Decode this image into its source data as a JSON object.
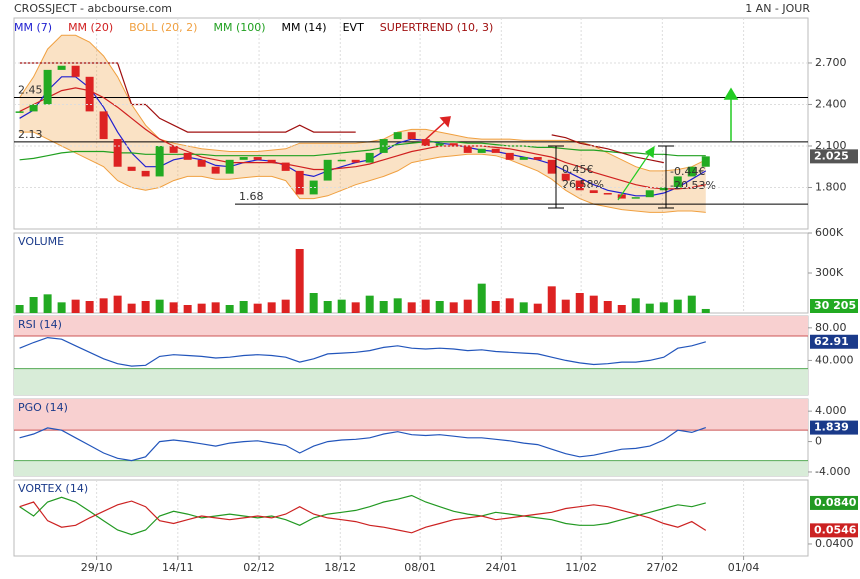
{
  "chart_data": [
    {
      "type": "candlestick",
      "title": "CROSSJECT - abcbourse.com",
      "subtitle": "1 AN - JOUR",
      "xlim": [
        -0.4,
        56.3
      ],
      "xticks": [
        {
          "value": 5.5,
          "label": "29/10"
        },
        {
          "value": 11.3,
          "label": "14/11"
        },
        {
          "value": 17.1,
          "label": "02/12"
        },
        {
          "value": 22.9,
          "label": "18/12"
        },
        {
          "value": 28.6,
          "label": "08/01"
        },
        {
          "value": 34.4,
          "label": "24/01"
        },
        {
          "value": 40.1,
          "label": "11/02"
        },
        {
          "value": 45.9,
          "label": "27/02"
        },
        {
          "value": 51.7,
          "label": "01/04"
        }
      ],
      "ylim": [
        1.5,
        3.025
      ],
      "yticks": [
        {
          "value": 2.7,
          "label": "2.700"
        },
        {
          "value": 2.4,
          "label": "2.400"
        },
        {
          "value": 2.1,
          "label": "2.100"
        },
        {
          "value": 1.8,
          "label": "1.800"
        }
      ],
      "grid": true,
      "up_color": "#22aa22",
      "down_color": "#dd2222",
      "values": [
        2.35,
        2.4,
        2.65,
        2.68,
        2.6,
        2.35,
        2.15,
        1.95,
        1.92,
        1.88,
        2.1,
        2.05,
        2.0,
        1.95,
        1.9,
        2.0,
        2.02,
        2.0,
        1.98,
        1.92,
        1.75,
        1.85,
        2.0,
        2.0,
        1.98,
        2.05,
        2.15,
        2.2,
        2.15,
        2.1,
        2.12,
        2.1,
        2.05,
        2.08,
        2.05,
        2.0,
        2.02,
        2.0,
        1.9,
        1.85,
        1.78,
        1.76,
        1.75,
        1.72,
        1.73,
        1.78,
        1.8,
        1.88,
        1.95,
        2.025
      ],
      "series": [
        {
          "name": "MM (7)",
          "color": "#2020d0",
          "values": [
            2.3,
            2.36,
            2.5,
            2.6,
            2.6,
            2.52,
            2.38,
            2.2,
            2.05,
            1.95,
            1.95,
            2.0,
            2.02,
            2.0,
            1.96,
            1.95,
            1.98,
            2.0,
            1.99,
            1.96,
            1.9,
            1.88,
            1.92,
            1.95,
            1.98,
            2.0,
            2.06,
            2.12,
            2.15,
            2.14,
            2.12,
            2.11,
            2.09,
            2.07,
            2.06,
            2.04,
            2.02,
            2.0,
            1.97,
            1.92,
            1.87,
            1.82,
            1.78,
            1.76,
            1.74,
            1.74,
            1.76,
            1.8,
            1.86,
            1.92
          ]
        },
        {
          "name": "MM (20)",
          "color": "#d02020",
          "values": [
            2.35,
            2.4,
            2.45,
            2.5,
            2.52,
            2.5,
            2.45,
            2.38,
            2.3,
            2.22,
            2.15,
            2.1,
            2.06,
            2.02,
            2.0,
            1.98,
            1.98,
            1.98,
            1.98,
            1.97,
            1.95,
            1.93,
            1.93,
            1.94,
            1.95,
            1.97,
            2.0,
            2.03,
            2.06,
            2.08,
            2.1,
            2.1,
            2.1,
            2.1,
            2.09,
            2.08,
            2.06,
            2.04,
            2.02,
            1.98,
            1.95,
            1.91,
            1.88,
            1.85,
            1.82,
            1.8,
            1.79,
            1.79,
            1.8,
            1.82
          ]
        },
        {
          "name": "BOLL (20, 2)",
          "color": "#f0a040",
          "type": "band",
          "upper": [
            2.45,
            2.6,
            2.8,
            2.9,
            2.9,
            2.85,
            2.75,
            2.6,
            2.4,
            2.25,
            2.15,
            2.12,
            2.1,
            2.08,
            2.07,
            2.06,
            2.06,
            2.06,
            2.07,
            2.08,
            2.12,
            2.12,
            2.12,
            2.12,
            2.12,
            2.13,
            2.15,
            2.2,
            2.22,
            2.22,
            2.2,
            2.18,
            2.16,
            2.15,
            2.15,
            2.15,
            2.14,
            2.14,
            2.14,
            2.14,
            2.13,
            2.1,
            2.05,
            2.0,
            1.95,
            1.92,
            1.92,
            1.93,
            1.95,
            2.0
          ],
          "lower": [
            2.2,
            2.2,
            2.15,
            2.1,
            2.05,
            2.0,
            1.95,
            1.85,
            1.8,
            1.78,
            1.8,
            1.85,
            1.88,
            1.88,
            1.86,
            1.86,
            1.87,
            1.88,
            1.88,
            1.85,
            1.72,
            1.72,
            1.74,
            1.78,
            1.82,
            1.85,
            1.88,
            1.92,
            1.98,
            2.0,
            2.02,
            2.03,
            2.04,
            2.04,
            2.03,
            2.0,
            1.96,
            1.92,
            1.86,
            1.78,
            1.72,
            1.68,
            1.66,
            1.64,
            1.63,
            1.62,
            1.62,
            1.63,
            1.63,
            1.62
          ]
        },
        {
          "name": "MM (100)",
          "color": "#20a020",
          "values": [
            2.0,
            2.01,
            2.03,
            2.05,
            2.06,
            2.06,
            2.06,
            2.05,
            2.05,
            2.04,
            2.04,
            2.04,
            2.04,
            2.04,
            2.03,
            2.03,
            2.03,
            2.03,
            2.03,
            2.03,
            2.03,
            2.03,
            2.04,
            2.05,
            2.06,
            2.07,
            2.09,
            2.11,
            2.12,
            2.13,
            2.13,
            2.13,
            2.12,
            2.12,
            2.11,
            2.1,
            2.1,
            2.09,
            2.09,
            2.08,
            2.07,
            2.07,
            2.06,
            2.05,
            2.05,
            2.04,
            2.04,
            2.03,
            2.03,
            2.03
          ]
        },
        {
          "name": "MM (14)",
          "color": "#000000"
        },
        {
          "name": "EVT",
          "color": "#000000"
        },
        {
          "name": "SUPERTREND (10, 3)",
          "color": "#a01010",
          "values": [
            2.7,
            2.7,
            2.7,
            2.7,
            2.7,
            2.7,
            2.7,
            2.7,
            2.4,
            2.4,
            2.3,
            2.25,
            2.2,
            2.2,
            2.2,
            2.2,
            2.2,
            2.2,
            2.2,
            2.2,
            2.25,
            2.2,
            2.2,
            2.2,
            2.2,
            null,
            null,
            null,
            null,
            null,
            null,
            null,
            null,
            null,
            null,
            null,
            null,
            null,
            2.18,
            2.16,
            2.12,
            2.1,
            2.08,
            2.05,
            2.02,
            2.0,
            1.98,
            null,
            null,
            null
          ]
        }
      ],
      "levels": [
        2.45,
        2.13,
        1.68
      ],
      "annotations": [
        "0.45€",
        "26.58%",
        "-0.44€",
        "-20.53%"
      ]
    },
    {
      "type": "bar",
      "title": "VOLUME",
      "ylim": [
        0,
        600000
      ],
      "yticks": [
        {
          "value": 600000,
          "label": "600K"
        },
        {
          "value": 300000,
          "label": "300K"
        }
      ],
      "color": "#22aa22",
      "values": [
        60000,
        120000,
        140000,
        80000,
        100000,
        90000,
        110000,
        130000,
        70000,
        90000,
        100000,
        80000,
        60000,
        70000,
        80000,
        60000,
        90000,
        70000,
        80000,
        100000,
        480000,
        150000,
        90000,
        100000,
        80000,
        130000,
        90000,
        110000,
        80000,
        100000,
        90000,
        80000,
        100000,
        220000,
        90000,
        110000,
        80000,
        70000,
        200000,
        100000,
        150000,
        130000,
        90000,
        60000,
        110000,
        70000,
        80000,
        100000,
        130000,
        30205
      ],
      "value_labels": [
        null,
        null,
        null,
        null,
        null,
        null,
        null,
        null,
        null,
        null,
        null,
        null,
        null,
        null,
        null,
        null,
        null,
        null,
        null,
        null,
        null,
        null,
        null,
        null,
        null,
        null,
        null,
        null,
        null,
        null,
        null,
        null,
        null,
        null,
        null,
        null,
        null,
        null,
        null,
        null,
        null,
        null,
        null,
        null,
        null,
        null,
        null,
        null,
        null,
        "30 205"
      ]
    },
    {
      "type": "line",
      "title": "RSI (14)",
      "ylim": [
        -2.4,
        94.5
      ],
      "yticks": [
        {
          "value": 80,
          "label": "80.00"
        },
        {
          "value": 40,
          "label": "40.000"
        }
      ],
      "zones": [
        30,
        70
      ],
      "color": "#2255bb",
      "values": [
        55,
        62,
        68,
        66,
        58,
        50,
        42,
        36,
        33,
        34,
        45,
        47,
        46,
        45,
        43,
        44,
        46,
        47,
        46,
        44,
        38,
        42,
        48,
        49,
        50,
        52,
        56,
        58,
        55,
        54,
        55,
        54,
        52,
        53,
        51,
        50,
        49,
        48,
        44,
        40,
        37,
        35,
        36,
        38,
        38,
        40,
        44,
        55,
        58,
        62.91
      ]
    },
    {
      "type": "line",
      "title": "PGO (14)",
      "ylim": [
        -4.53,
        5.6
      ],
      "yticks": [
        {
          "value": 4,
          "label": "4.000"
        },
        0,
        {
          "value": -4,
          "label": "-4.000"
        }
      ],
      "zones": [
        -2.5,
        1.5
      ],
      "color": "#2255bb",
      "values": [
        0.5,
        1.0,
        1.8,
        1.5,
        0.5,
        -0.5,
        -1.5,
        -2.2,
        -2.5,
        -2.0,
        0.0,
        0.2,
        0.0,
        -0.3,
        -0.6,
        -0.2,
        0.0,
        0.1,
        -0.2,
        -0.5,
        -1.5,
        -0.6,
        0.0,
        0.2,
        0.3,
        0.5,
        1.0,
        1.3,
        0.9,
        0.8,
        0.9,
        0.7,
        0.5,
        0.5,
        0.3,
        0.1,
        -0.2,
        -0.4,
        -1.0,
        -1.6,
        -2.0,
        -1.8,
        -1.4,
        -1.0,
        -0.9,
        -0.6,
        0.2,
        1.5,
        1.2,
        1.839
      ]
    },
    {
      "type": "multiline",
      "title": "VORTEX (14)",
      "ylim": [
        0.0271,
        0.1086
      ],
      "yticks": [
        {
          "value": 0.04,
          "label": "0.0400"
        }
      ],
      "series": [
        {
          "color": "#229922",
          "values": [
            0.08,
            0.07,
            0.085,
            0.09,
            0.085,
            0.075,
            0.065,
            0.055,
            0.05,
            0.055,
            0.07,
            0.075,
            0.072,
            0.068,
            0.07,
            0.072,
            0.07,
            0.068,
            0.07,
            0.066,
            0.06,
            0.068,
            0.072,
            0.074,
            0.076,
            0.08,
            0.085,
            0.088,
            0.092,
            0.085,
            0.08,
            0.075,
            0.072,
            0.07,
            0.074,
            0.072,
            0.07,
            0.068,
            0.066,
            0.062,
            0.06,
            0.06,
            0.062,
            0.066,
            0.07,
            0.074,
            0.078,
            0.082,
            0.08,
            0.084
          ],
          "value_labels": [
            null,
            null,
            null,
            null,
            null,
            null,
            null,
            null,
            null,
            null,
            null,
            null,
            null,
            null,
            null,
            null,
            null,
            null,
            null,
            null,
            null,
            null,
            null,
            null,
            null,
            null,
            null,
            null,
            null,
            null,
            null,
            null,
            null,
            null,
            null,
            null,
            null,
            null,
            null,
            null,
            null,
            null,
            null,
            null,
            null,
            null,
            null,
            null,
            null,
            "0.0840"
          ]
        },
        {
          "color": "#cc2222",
          "values": [
            0.08,
            0.085,
            0.065,
            0.058,
            0.06,
            0.068,
            0.075,
            0.082,
            0.086,
            0.08,
            0.065,
            0.062,
            0.066,
            0.07,
            0.068,
            0.066,
            0.068,
            0.07,
            0.068,
            0.072,
            0.08,
            0.072,
            0.068,
            0.066,
            0.064,
            0.06,
            0.058,
            0.055,
            0.052,
            0.058,
            0.062,
            0.066,
            0.068,
            0.07,
            0.066,
            0.068,
            0.07,
            0.072,
            0.074,
            0.078,
            0.08,
            0.082,
            0.08,
            0.076,
            0.072,
            0.068,
            0.062,
            0.058,
            0.064,
            0.0546
          ]
        }
      ]
    }
  ]
}
